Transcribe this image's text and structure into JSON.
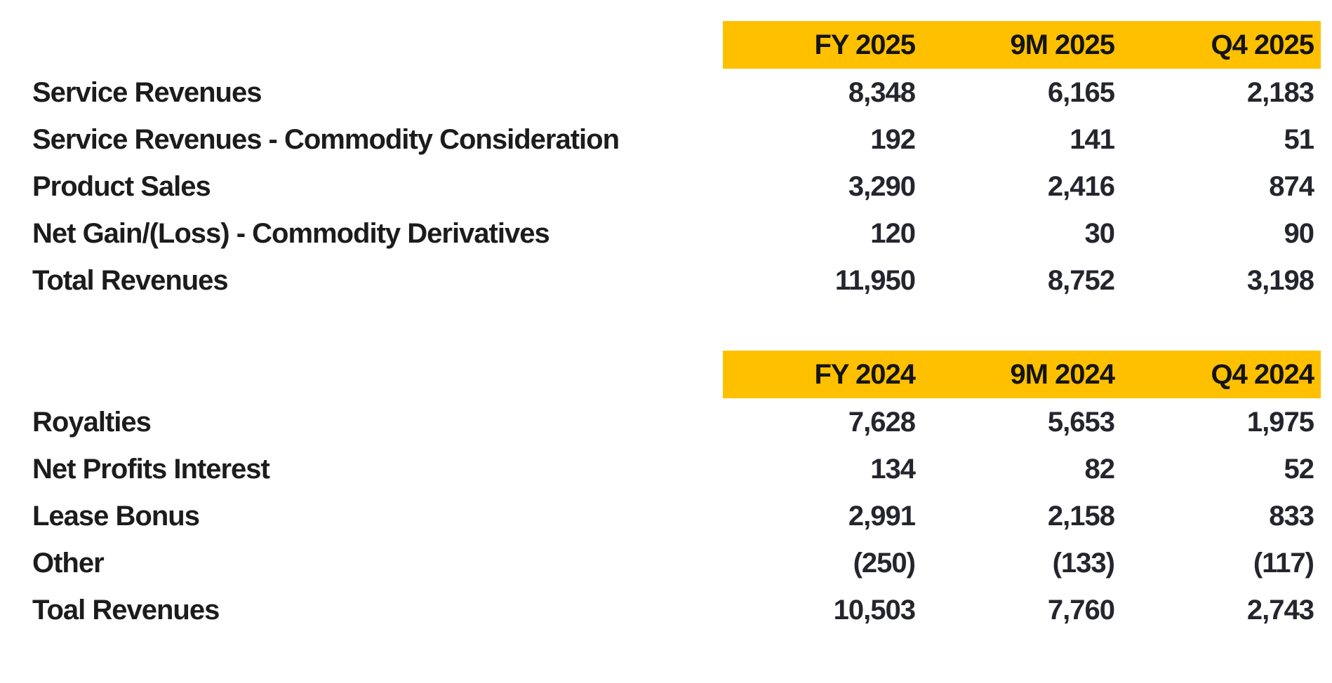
{
  "theme": {
    "header_bg": "#FFC000"
  },
  "tables": [
    {
      "name": "revenues-2025",
      "columns": [
        "FY 2025",
        "9M 2025",
        "Q4 2025"
      ],
      "rows": [
        {
          "label": "Service Revenues",
          "values": [
            "8,348",
            "6,165",
            "2,183"
          ]
        },
        {
          "label": "Service Revenues - Commodity Consideration",
          "values": [
            "192",
            "141",
            "51"
          ]
        },
        {
          "label": "Product Sales",
          "values": [
            "3,290",
            "2,416",
            "874"
          ]
        },
        {
          "label": "Net Gain/(Loss) - Commodity Derivatives",
          "values": [
            "120",
            "30",
            "90"
          ]
        },
        {
          "label": "Total Revenues",
          "values": [
            "11,950",
            "8,752",
            "3,198"
          ]
        }
      ]
    },
    {
      "name": "revenues-2024",
      "columns": [
        "FY 2024",
        "9M 2024",
        "Q4 2024"
      ],
      "rows": [
        {
          "label": "Royalties",
          "values": [
            "7,628",
            "5,653",
            "1,975"
          ]
        },
        {
          "label": "Net Profits Interest",
          "values": [
            "134",
            "82",
            "52"
          ]
        },
        {
          "label": "Lease Bonus",
          "values": [
            "2,991",
            "2,158",
            "833"
          ]
        },
        {
          "label": "Other",
          "values": [
            "(250)",
            "(133)",
            "(117)"
          ]
        },
        {
          "label": "Toal Revenues",
          "values": [
            "10,503",
            "7,760",
            "2,743"
          ]
        }
      ]
    }
  ]
}
